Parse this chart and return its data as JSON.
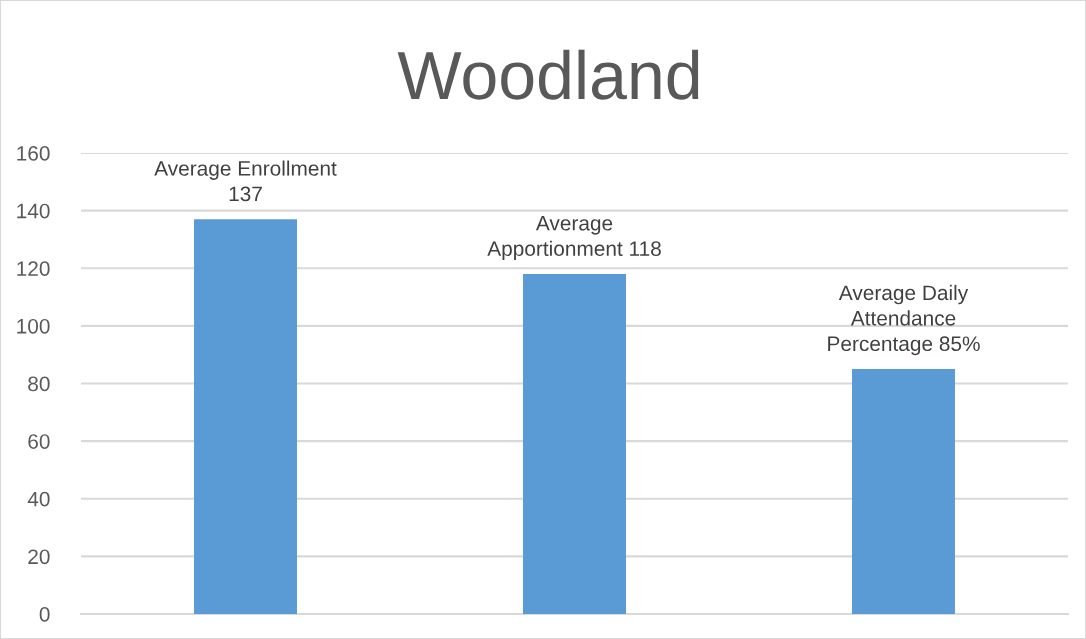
{
  "chart_data": {
    "type": "bar",
    "title": "Woodland",
    "categories": [
      null,
      null,
      null
    ],
    "values": [
      137,
      118,
      85
    ],
    "color": "#5b9bd5",
    "value_labels": [
      "Average Enrollment\n137",
      "Average\nApportionment 118",
      "Average Daily\nAttendance\nPercentage 85%"
    ],
    "ylim": [
      0,
      160
    ],
    "yticks": [
      0,
      20,
      40,
      60,
      80,
      100,
      120,
      140,
      160
    ],
    "grid": "y",
    "tick_labels": "y"
  }
}
